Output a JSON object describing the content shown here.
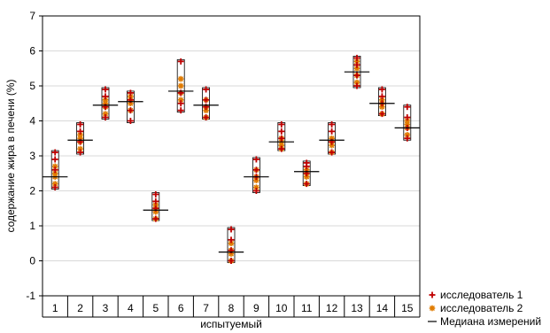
{
  "chart_data": {
    "type": "box-scatter",
    "xlabel": "испытуемый",
    "ylabel": "содержание жира в печени (%)",
    "ylim": [
      -1,
      7
    ],
    "yticks": [
      -1,
      0,
      1,
      2,
      3,
      4,
      5,
      6,
      7
    ],
    "categories": [
      "1",
      "2",
      "3",
      "4",
      "5",
      "6",
      "7",
      "8",
      "9",
      "10",
      "11",
      "12",
      "13",
      "14",
      "15"
    ],
    "grid": "horizontal",
    "legend_position": "outside-bottom-right",
    "series": [
      {
        "name": "исследователь 1",
        "marker": "plus",
        "color": "#c00000",
        "values": [
          [
            2.1,
            2.6,
            2.9,
            3.1
          ],
          [
            3.1,
            3.4,
            3.7,
            3.9
          ],
          [
            4.1,
            4.4,
            4.7,
            4.9
          ],
          [
            4.0,
            4.3,
            4.6,
            4.8
          ],
          [
            1.2,
            1.5,
            1.7,
            1.9
          ],
          [
            4.3,
            4.5,
            4.8,
            5.7
          ],
          [
            4.1,
            4.4,
            4.6,
            4.9
          ],
          [
            0.0,
            0.3,
            0.6,
            0.9
          ],
          [
            2.0,
            2.4,
            2.6,
            2.9
          ],
          [
            3.2,
            3.5,
            3.7,
            3.9
          ],
          [
            2.2,
            2.5,
            2.7,
            2.8
          ],
          [
            3.1,
            3.4,
            3.7,
            3.9
          ],
          [
            5.0,
            5.3,
            5.6,
            5.8
          ],
          [
            4.2,
            4.5,
            4.7,
            4.9
          ],
          [
            3.5,
            3.8,
            4.1,
            4.4
          ]
        ]
      },
      {
        "name": "исследователь 2",
        "marker": "asterisk",
        "color": "#e07b00",
        "values": [
          [
            2.2,
            2.4,
            2.5,
            2.7
          ],
          [
            3.2,
            3.4,
            3.5,
            3.6
          ],
          [
            4.2,
            4.4,
            4.5,
            4.6
          ],
          [
            4.3,
            4.5,
            4.6,
            4.7
          ],
          [
            1.2,
            1.4,
            1.5,
            1.6
          ],
          [
            4.6,
            4.8,
            5.0,
            5.2
          ],
          [
            4.1,
            4.3,
            4.4,
            4.6
          ],
          [
            0.0,
            0.2,
            0.3,
            0.5
          ],
          [
            2.1,
            2.3,
            2.4,
            2.6
          ],
          [
            3.2,
            3.3,
            3.4,
            3.5
          ],
          [
            2.2,
            2.4,
            2.5,
            2.6
          ],
          [
            3.1,
            3.3,
            3.4,
            3.5
          ],
          [
            5.1,
            5.3,
            5.5,
            5.7
          ],
          [
            4.2,
            4.4,
            4.5,
            4.6
          ],
          [
            3.6,
            3.8,
            3.9,
            4.0
          ]
        ]
      }
    ],
    "median_series": {
      "name": "Медиана измерений",
      "values": [
        2.4,
        3.45,
        4.45,
        4.55,
        1.45,
        4.85,
        4.45,
        0.25,
        2.4,
        3.4,
        2.55,
        3.45,
        5.4,
        4.5,
        3.8
      ]
    },
    "ranges": [
      [
        2.05,
        3.15
      ],
      [
        3.05,
        3.95
      ],
      [
        4.05,
        4.95
      ],
      [
        3.95,
        4.85
      ],
      [
        1.15,
        1.95
      ],
      [
        4.25,
        5.75
      ],
      [
        4.05,
        4.95
      ],
      [
        -0.05,
        0.95
      ],
      [
        1.95,
        2.95
      ],
      [
        3.15,
        3.95
      ],
      [
        2.15,
        2.85
      ],
      [
        3.05,
        3.95
      ],
      [
        4.95,
        5.85
      ],
      [
        4.15,
        4.95
      ],
      [
        3.45,
        4.45
      ]
    ]
  }
}
